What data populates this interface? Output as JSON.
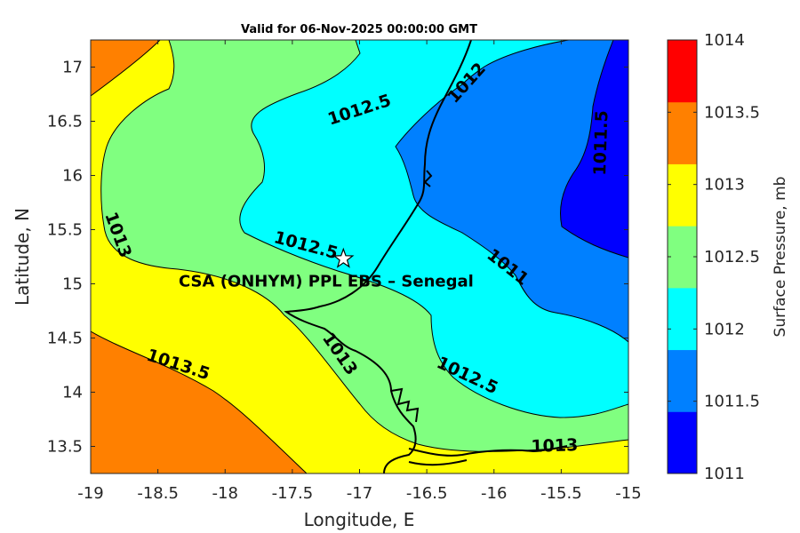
{
  "title": "Valid for 06-Nov-2025 00:00:00 GMT",
  "chart_data": {
    "type": "heatmap",
    "subtype": "filled-contour-map",
    "xlabel": "Longitude, E",
    "ylabel": "Latitude, N",
    "xlim": [
      -19,
      -15
    ],
    "ylim": [
      13.25,
      17.25
    ],
    "xticks": [
      -19,
      -18.5,
      -18,
      -17.5,
      -17,
      -16.5,
      -16,
      -15.5,
      -15
    ],
    "xtick_labels": [
      "-19",
      "-18.5",
      "-18",
      "-17.5",
      "-17",
      "-16.5",
      "-16",
      "-15.5",
      "-15"
    ],
    "yticks": [
      13.5,
      14,
      14.5,
      15,
      15.5,
      16,
      16.5,
      17
    ],
    "ytick_labels": [
      "13.5",
      "14",
      "14.5",
      "15",
      "15.5",
      "16",
      "16.5",
      "17"
    ],
    "colorbar": {
      "title": "Surface Pressure, mb",
      "levels": [
        1011,
        1011.5,
        1012,
        1012.5,
        1013,
        1013.5,
        1014
      ],
      "tick_labels": [
        "1011",
        "1011.5",
        "1012",
        "1012.5",
        "1013",
        "1013.5",
        "1014"
      ],
      "colors": [
        "#0000ff",
        "#0080ff",
        "#00ffff",
        "#80ff80",
        "#ffff00",
        "#ff8000",
        "#ff0000"
      ]
    },
    "contour_labels": [
      {
        "text": "1012.5",
        "lon": -17.0,
        "lat": 16.6,
        "angle": -18
      },
      {
        "text": "1012",
        "lon": -16.2,
        "lat": 16.85,
        "angle": -48
      },
      {
        "text": "1011.5",
        "lon": -15.2,
        "lat": 16.3,
        "angle": -88
      },
      {
        "text": "1013",
        "lon": -18.8,
        "lat": 15.45,
        "angle": 70
      },
      {
        "text": "1012.5",
        "lon": -17.4,
        "lat": 15.35,
        "angle": 15
      },
      {
        "text": "1011",
        "lon": -15.9,
        "lat": 15.15,
        "angle": 38
      },
      {
        "text": "1013",
        "lon": -17.15,
        "lat": 14.35,
        "angle": 55
      },
      {
        "text": "1013.5",
        "lon": -18.35,
        "lat": 14.25,
        "angle": 18
      },
      {
        "text": "1012.5",
        "lon": -16.2,
        "lat": 14.15,
        "angle": 25
      },
      {
        "text": "1013",
        "lon": -15.55,
        "lat": 13.5,
        "angle": -2
      }
    ],
    "site": {
      "label": "CSA (ONHYM) PPL EBS  – Senegal",
      "lon": -17.12,
      "lat": 15.23,
      "marker": "star"
    }
  }
}
